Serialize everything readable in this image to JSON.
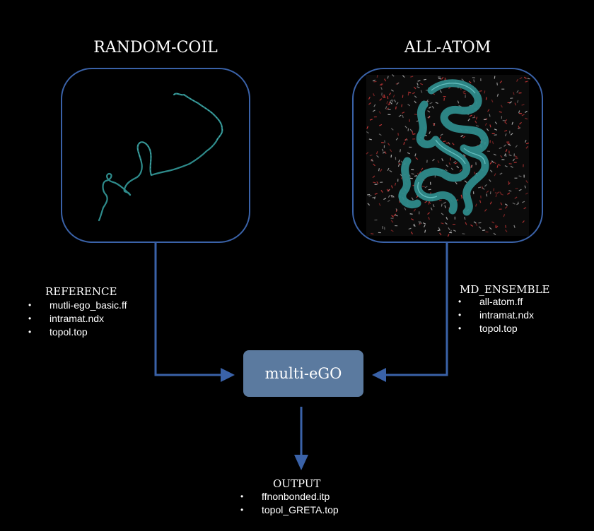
{
  "left_panel": {
    "title": "RANDOM-COIL",
    "group_label": "REFERENCE",
    "files": [
      "mutli-ego_basic.ff",
      "intramat.ndx",
      "topol.top"
    ]
  },
  "right_panel": {
    "title": "ALL-ATOM",
    "group_label": "MD_ENSEMBLE",
    "files": [
      "all-atom.ff",
      "intramat.ndx",
      "topol.top"
    ]
  },
  "center": {
    "label": "multi-eGO"
  },
  "output": {
    "group_label": "OUTPUT",
    "files": [
      "ffnonbonded.itp",
      "topol_GRETA.top"
    ]
  },
  "colors": {
    "panel_border": "#3a62a8",
    "arrow": "#3a62a8",
    "center_box": "#5b7a9f",
    "protein": "#2e8b8b",
    "water_oxygen": "#d43a3a"
  },
  "icons": {
    "random_coil_image": "random-coil-protein-chain",
    "all_atom_image": "folded-protein-in-water"
  }
}
